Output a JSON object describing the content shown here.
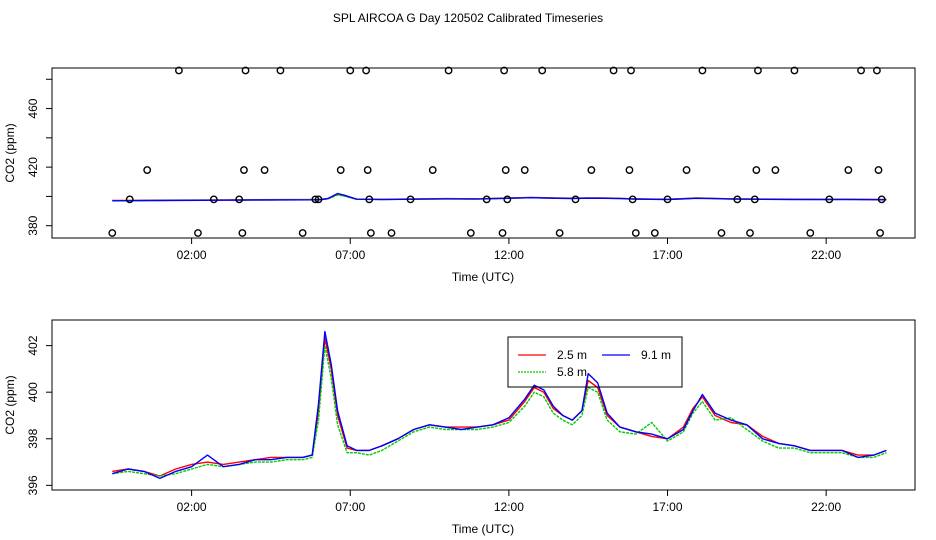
{
  "title": "SPL AIRCOA G  Day 120502  Calibrated Timeseries",
  "chart_data": [
    {
      "type": "scatter",
      "xlabel": "Time (UTC)",
      "ylabel": "CO2 (ppm)",
      "xlim": [
        -2.4,
        24.8
      ],
      "ylim": [
        371.6,
        487.7
      ],
      "xticks": [
        2,
        7,
        12,
        17,
        22
      ],
      "xtick_labels": [
        "02:00",
        "07:00",
        "12:00",
        "17:00",
        "22:00"
      ],
      "yticks": [
        380,
        420,
        460
      ],
      "ytick_labels": [
        "380",
        "420",
        "460"
      ],
      "points_hours": [
        -0.5,
        0.05,
        0.6,
        1.6,
        2.2,
        2.7,
        3.5,
        3.6,
        3.65,
        3.7,
        4.3,
        4.8,
        5.5,
        5.9,
        6.0,
        6.7,
        7.0,
        7.5,
        7.55,
        7.6,
        7.65,
        8.3,
        8.9,
        9.6,
        10.1,
        10.8,
        11.3,
        11.8,
        11.85,
        11.9,
        11.95,
        12.5,
        13.05,
        13.6,
        14.1,
        14.6,
        15.3,
        15.8,
        15.85,
        15.9,
        16.0,
        16.6,
        17.0,
        17.6,
        18.1,
        18.7,
        19.2,
        19.6,
        19.75,
        19.8,
        19.85,
        20.4,
        21.0,
        21.5,
        22.1,
        22.7,
        23.1,
        23.6,
        23.65,
        23.7,
        23.75
      ],
      "points_values": [
        375,
        398,
        418,
        486,
        375,
        398,
        398,
        375,
        418,
        486,
        418,
        486,
        375,
        398,
        398,
        418,
        486,
        486,
        418,
        398,
        375,
        375,
        398,
        418,
        486,
        375,
        398,
        375,
        486,
        418,
        398,
        418,
        486,
        375,
        398,
        418,
        486,
        418,
        486,
        398,
        375,
        375,
        398,
        418,
        486,
        375,
        398,
        375,
        398,
        418,
        486,
        418,
        486,
        375,
        398,
        418,
        486,
        486,
        418,
        375,
        398
      ],
      "series": [
        {
          "name": "2.5 m",
          "color": "#ff0000",
          "x": [
            -0.5,
            1.0,
            3.0,
            5.0,
            5.9,
            6.1,
            6.3,
            6.6,
            6.8,
            7.2,
            8.0,
            9.0,
            10.0,
            11.0,
            12.0,
            12.7,
            13.1,
            13.5,
            14.0,
            14.5,
            15.0,
            15.5,
            15.9,
            16.5,
            17.0,
            17.5,
            17.9,
            18.4,
            19.0,
            20.0,
            21.0,
            22.0,
            22.5,
            23.0,
            23.9
          ],
          "values": [
            397.2,
            397.4,
            397.6,
            397.8,
            397.9,
            398.0,
            398.5,
            401.5,
            400.5,
            398.2,
            398.0,
            398.3,
            398.5,
            398.4,
            398.9,
            399.3,
            399.1,
            398.9,
            398.8,
            399.0,
            398.9,
            398.7,
            398.4,
            398.2,
            398.1,
            398.5,
            398.9,
            398.7,
            398.4,
            398.2,
            398.1,
            398.0,
            398.1,
            398.0,
            397.9
          ]
        },
        {
          "name": "5.8 m",
          "color": "#00cc00",
          "x": [
            -0.5,
            1.0,
            3.0,
            5.0,
            5.9,
            6.1,
            6.3,
            6.6,
            6.8,
            7.2,
            8.0,
            9.0,
            10.0,
            11.0,
            12.0,
            12.7,
            13.1,
            13.5,
            14.0,
            14.5,
            15.0,
            15.5,
            15.9,
            16.5,
            17.0,
            17.5,
            17.9,
            18.4,
            19.0,
            20.0,
            21.0,
            22.0,
            22.5,
            23.0,
            23.9
          ],
          "values": [
            397.1,
            397.3,
            397.5,
            397.7,
            397.8,
            397.9,
            398.3,
            401.0,
            400.2,
            398.0,
            397.9,
            398.2,
            398.4,
            398.3,
            398.8,
            399.2,
            399.0,
            398.8,
            398.7,
            398.9,
            398.8,
            398.6,
            398.3,
            398.1,
            398.0,
            398.4,
            398.8,
            398.6,
            398.3,
            398.1,
            398.0,
            397.9,
            398.0,
            397.9,
            397.8
          ]
        },
        {
          "name": "9.1 m",
          "color": "#0000ff",
          "x": [
            -0.5,
            1.0,
            3.0,
            5.0,
            5.9,
            6.1,
            6.3,
            6.6,
            6.8,
            7.2,
            8.0,
            9.0,
            10.0,
            11.0,
            12.0,
            12.7,
            13.1,
            13.5,
            14.0,
            14.5,
            15.0,
            15.5,
            15.9,
            16.5,
            17.0,
            17.5,
            17.9,
            18.4,
            19.0,
            20.0,
            21.0,
            22.0,
            22.5,
            23.0,
            23.9
          ],
          "values": [
            397.0,
            397.2,
            397.4,
            397.6,
            397.7,
            397.9,
            398.6,
            402.0,
            400.9,
            398.1,
            397.8,
            398.1,
            398.3,
            398.2,
            398.7,
            399.1,
            398.9,
            398.7,
            398.6,
            398.8,
            398.7,
            398.5,
            398.2,
            398.0,
            397.9,
            398.3,
            398.7,
            398.5,
            398.2,
            398.0,
            397.9,
            397.8,
            397.9,
            397.8,
            397.7
          ]
        }
      ]
    },
    {
      "type": "line",
      "xlabel": "Time (UTC)",
      "ylabel": "CO2 (ppm)",
      "xlim": [
        -2.4,
        24.8
      ],
      "ylim": [
        395.8,
        403.1
      ],
      "xticks": [
        2,
        7,
        12,
        17,
        22
      ],
      "xtick_labels": [
        "02:00",
        "07:00",
        "12:00",
        "17:00",
        "22:00"
      ],
      "yticks": [
        396,
        398,
        400,
        402
      ],
      "ytick_labels": [
        "396",
        "398",
        "400",
        "402"
      ],
      "legend": [
        "2.5 m",
        "9.1 m",
        "5.8 m"
      ],
      "legend_position": "top-center",
      "series": [
        {
          "name": "2.5 m",
          "color": "#ff0000",
          "x": [
            -0.5,
            0.0,
            0.5,
            1.0,
            1.5,
            2.0,
            2.5,
            3.0,
            3.5,
            4.0,
            4.5,
            5.0,
            5.5,
            5.8,
            6.0,
            6.2,
            6.4,
            6.6,
            6.9,
            7.2,
            7.6,
            8.0,
            8.5,
            9.0,
            9.5,
            10.0,
            10.5,
            11.0,
            11.5,
            12.0,
            12.5,
            12.8,
            13.1,
            13.4,
            13.7,
            14.0,
            14.3,
            14.5,
            14.8,
            15.1,
            15.5,
            16.0,
            16.5,
            17.0,
            17.5,
            17.8,
            18.1,
            18.5,
            19.0,
            19.5,
            20.0,
            20.5,
            21.0,
            21.5,
            22.0,
            22.5,
            23.0,
            23.5,
            23.9
          ],
          "values": [
            396.6,
            396.7,
            396.6,
            396.4,
            396.7,
            396.9,
            397.0,
            396.9,
            397.0,
            397.1,
            397.2,
            397.2,
            397.2,
            397.3,
            399.2,
            402.3,
            401.0,
            399.0,
            397.6,
            397.5,
            397.5,
            397.7,
            398.0,
            398.4,
            398.6,
            398.5,
            398.5,
            398.5,
            398.6,
            398.8,
            399.6,
            400.2,
            400.0,
            399.3,
            399.0,
            398.8,
            399.2,
            400.5,
            400.2,
            399.0,
            398.5,
            398.3,
            398.1,
            398.0,
            398.5,
            399.3,
            399.8,
            399.0,
            398.7,
            398.6,
            398.1,
            397.8,
            397.7,
            397.5,
            397.5,
            397.5,
            397.3,
            397.3,
            397.5
          ]
        },
        {
          "name": "5.8 m",
          "color": "#00cc00",
          "x": [
            -0.5,
            0.0,
            0.5,
            1.0,
            1.5,
            2.0,
            2.5,
            3.0,
            3.5,
            4.0,
            4.5,
            5.0,
            5.5,
            5.8,
            6.0,
            6.2,
            6.4,
            6.6,
            6.9,
            7.2,
            7.6,
            8.0,
            8.5,
            9.0,
            9.5,
            10.0,
            10.5,
            11.0,
            11.5,
            12.0,
            12.5,
            12.8,
            13.1,
            13.4,
            13.7,
            14.0,
            14.3,
            14.5,
            14.8,
            15.1,
            15.5,
            16.0,
            16.5,
            17.0,
            17.5,
            17.8,
            18.1,
            18.5,
            19.0,
            19.5,
            20.0,
            20.5,
            21.0,
            21.5,
            22.0,
            22.5,
            23.0,
            23.5,
            23.9
          ],
          "values": [
            396.5,
            396.6,
            396.5,
            396.4,
            396.5,
            396.7,
            396.9,
            396.8,
            396.9,
            397.0,
            397.0,
            397.1,
            397.1,
            397.2,
            398.8,
            402.0,
            400.6,
            398.6,
            397.4,
            397.4,
            397.3,
            397.5,
            397.9,
            398.3,
            398.5,
            398.4,
            398.4,
            398.4,
            398.5,
            398.7,
            399.4,
            400.0,
            399.8,
            399.1,
            398.8,
            398.6,
            399.0,
            400.2,
            400.0,
            398.8,
            398.3,
            398.2,
            398.7,
            397.9,
            398.3,
            399.1,
            399.6,
            398.8,
            398.9,
            398.4,
            397.9,
            397.6,
            397.6,
            397.4,
            397.4,
            397.4,
            397.2,
            397.2,
            397.4
          ]
        },
        {
          "name": "9.1 m",
          "color": "#0000ff",
          "x": [
            -0.5,
            0.0,
            0.5,
            1.0,
            1.5,
            2.0,
            2.5,
            3.0,
            3.5,
            4.0,
            4.5,
            5.0,
            5.5,
            5.8,
            6.0,
            6.2,
            6.4,
            6.6,
            6.9,
            7.2,
            7.6,
            8.0,
            8.5,
            9.0,
            9.5,
            10.0,
            10.5,
            11.0,
            11.5,
            12.0,
            12.5,
            12.8,
            13.1,
            13.4,
            13.7,
            14.0,
            14.3,
            14.5,
            14.8,
            15.1,
            15.5,
            16.0,
            16.5,
            17.0,
            17.5,
            17.8,
            18.1,
            18.5,
            19.0,
            19.5,
            20.0,
            20.5,
            21.0,
            21.5,
            22.0,
            22.5,
            23.0,
            23.5,
            23.9
          ],
          "values": [
            396.5,
            396.7,
            396.6,
            396.3,
            396.6,
            396.8,
            397.3,
            396.8,
            396.9,
            397.1,
            397.1,
            397.2,
            397.2,
            397.3,
            399.5,
            402.6,
            401.2,
            399.2,
            397.7,
            397.5,
            397.5,
            397.7,
            398.0,
            398.4,
            398.6,
            398.5,
            398.4,
            398.5,
            398.6,
            398.9,
            399.7,
            400.3,
            400.1,
            399.4,
            399.0,
            398.8,
            399.2,
            400.8,
            400.4,
            399.1,
            398.5,
            398.3,
            398.2,
            398.0,
            398.4,
            399.2,
            399.9,
            399.1,
            398.8,
            398.6,
            398.0,
            397.8,
            397.7,
            397.5,
            397.5,
            397.5,
            397.2,
            397.3,
            397.5
          ]
        }
      ]
    }
  ]
}
